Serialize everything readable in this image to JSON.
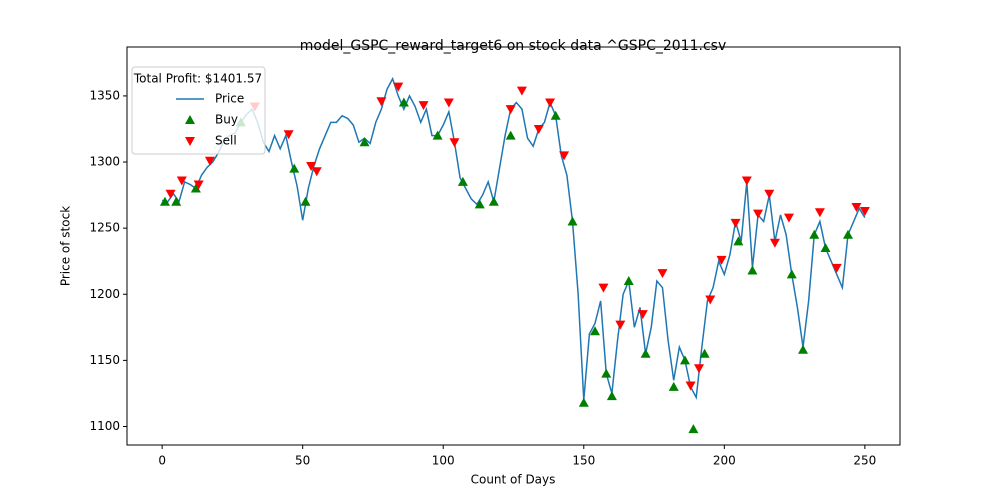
{
  "chart_data": {
    "type": "line",
    "title": "model_GSPC_reward_target6 on stock data ^GSPC_2011.csv",
    "xlabel": "Count of Days",
    "ylabel": "Price of stock",
    "legend_title": "Total Profit: $1401.57",
    "legend": "upper left",
    "xlim": [
      -12.5,
      262.5
    ],
    "ylim": [
      1086,
      1387
    ],
    "xticks": [
      0,
      50,
      100,
      150,
      200,
      250
    ],
    "yticks": [
      1100,
      1150,
      1200,
      1250,
      1300,
      1350
    ],
    "series": [
      {
        "name": "Price",
        "color": "#1f77b4",
        "marker": "line",
        "x": [
          0,
          2,
          4,
          6,
          8,
          10,
          12,
          14,
          16,
          18,
          20,
          22,
          24,
          26,
          28,
          30,
          32,
          34,
          36,
          38,
          40,
          42,
          44,
          46,
          48,
          50,
          52,
          54,
          56,
          58,
          60,
          62,
          64,
          66,
          68,
          70,
          72,
          74,
          76,
          78,
          80,
          82,
          84,
          86,
          88,
          90,
          92,
          94,
          96,
          98,
          100,
          102,
          104,
          106,
          108,
          110,
          112,
          114,
          116,
          118,
          120,
          122,
          124,
          126,
          128,
          130,
          132,
          134,
          136,
          138,
          140,
          142,
          144,
          146,
          148,
          150,
          152,
          154,
          156,
          158,
          160,
          162,
          164,
          166,
          168,
          170,
          172,
          174,
          176,
          178,
          180,
          182,
          184,
          186,
          188,
          190,
          192,
          194,
          196,
          198,
          200,
          202,
          204,
          206,
          208,
          210,
          212,
          214,
          216,
          218,
          220,
          222,
          224,
          226,
          228,
          230,
          232,
          234,
          236,
          238,
          240,
          242,
          244,
          246,
          248,
          250
        ],
        "values": [
          1271,
          1270,
          1276,
          1270,
          1285,
          1283,
          1280,
          1290,
          1296,
          1300,
          1307,
          1316,
          1320,
          1322,
          1330,
          1336,
          1340,
          1330,
          1315,
          1308,
          1320,
          1310,
          1320,
          1300,
          1282,
          1256,
          1280,
          1297,
          1310,
          1320,
          1330,
          1330,
          1335,
          1333,
          1328,
          1315,
          1318,
          1314,
          1330,
          1340,
          1355,
          1363,
          1350,
          1340,
          1350,
          1342,
          1330,
          1340,
          1320,
          1320,
          1328,
          1338,
          1315,
          1288,
          1280,
          1272,
          1268,
          1275,
          1285,
          1270,
          1295,
          1320,
          1340,
          1345,
          1340,
          1318,
          1312,
          1325,
          1330,
          1345,
          1335,
          1305,
          1290,
          1255,
          1200,
          1120,
          1170,
          1178,
          1195,
          1140,
          1125,
          1165,
          1200,
          1210,
          1175,
          1190,
          1155,
          1175,
          1210,
          1205,
          1165,
          1135,
          1160,
          1150,
          1130,
          1122,
          1160,
          1195,
          1205,
          1225,
          1215,
          1230,
          1255,
          1240,
          1285,
          1220,
          1260,
          1255,
          1275,
          1240,
          1260,
          1245,
          1215,
          1190,
          1160,
          1195,
          1245,
          1255,
          1235,
          1225,
          1215,
          1205,
          1245,
          1255,
          1265,
          1258
        ]
      },
      {
        "name": "Buy",
        "color": "green",
        "marker": "up",
        "x": [
          1,
          5,
          12,
          28,
          47,
          51,
          72,
          86,
          98,
          107,
          113,
          118,
          124,
          140,
          146,
          150,
          154,
          158,
          160,
          166,
          172,
          182,
          186,
          189,
          193,
          205,
          210,
          224,
          228,
          232,
          236,
          244
        ],
        "values": [
          1270,
          1270,
          1280,
          1330,
          1295,
          1270,
          1315,
          1345,
          1320,
          1285,
          1268,
          1270,
          1320,
          1335,
          1255,
          1118,
          1172,
          1140,
          1123,
          1210,
          1155,
          1130,
          1150,
          1098,
          1155,
          1240,
          1218,
          1215,
          1158,
          1245,
          1235,
          1245
        ]
      },
      {
        "name": "Sell",
        "color": "red",
        "marker": "down",
        "x": [
          3,
          7,
          13,
          17,
          33,
          45,
          53,
          55,
          78,
          84,
          93,
          102,
          104,
          124,
          128,
          134,
          138,
          143,
          157,
          163,
          171,
          178,
          188,
          191,
          195,
          199,
          204,
          208,
          212,
          216,
          218,
          223,
          234,
          240,
          247,
          250
        ],
        "values": [
          1276,
          1286,
          1283,
          1301,
          1342,
          1321,
          1297,
          1293,
          1346,
          1357,
          1343,
          1345,
          1315,
          1340,
          1354,
          1325,
          1345,
          1305,
          1205,
          1177,
          1185,
          1216,
          1131,
          1144,
          1196,
          1226,
          1254,
          1286,
          1261,
          1276,
          1239,
          1258,
          1262,
          1220,
          1266,
          1263
        ]
      }
    ]
  }
}
